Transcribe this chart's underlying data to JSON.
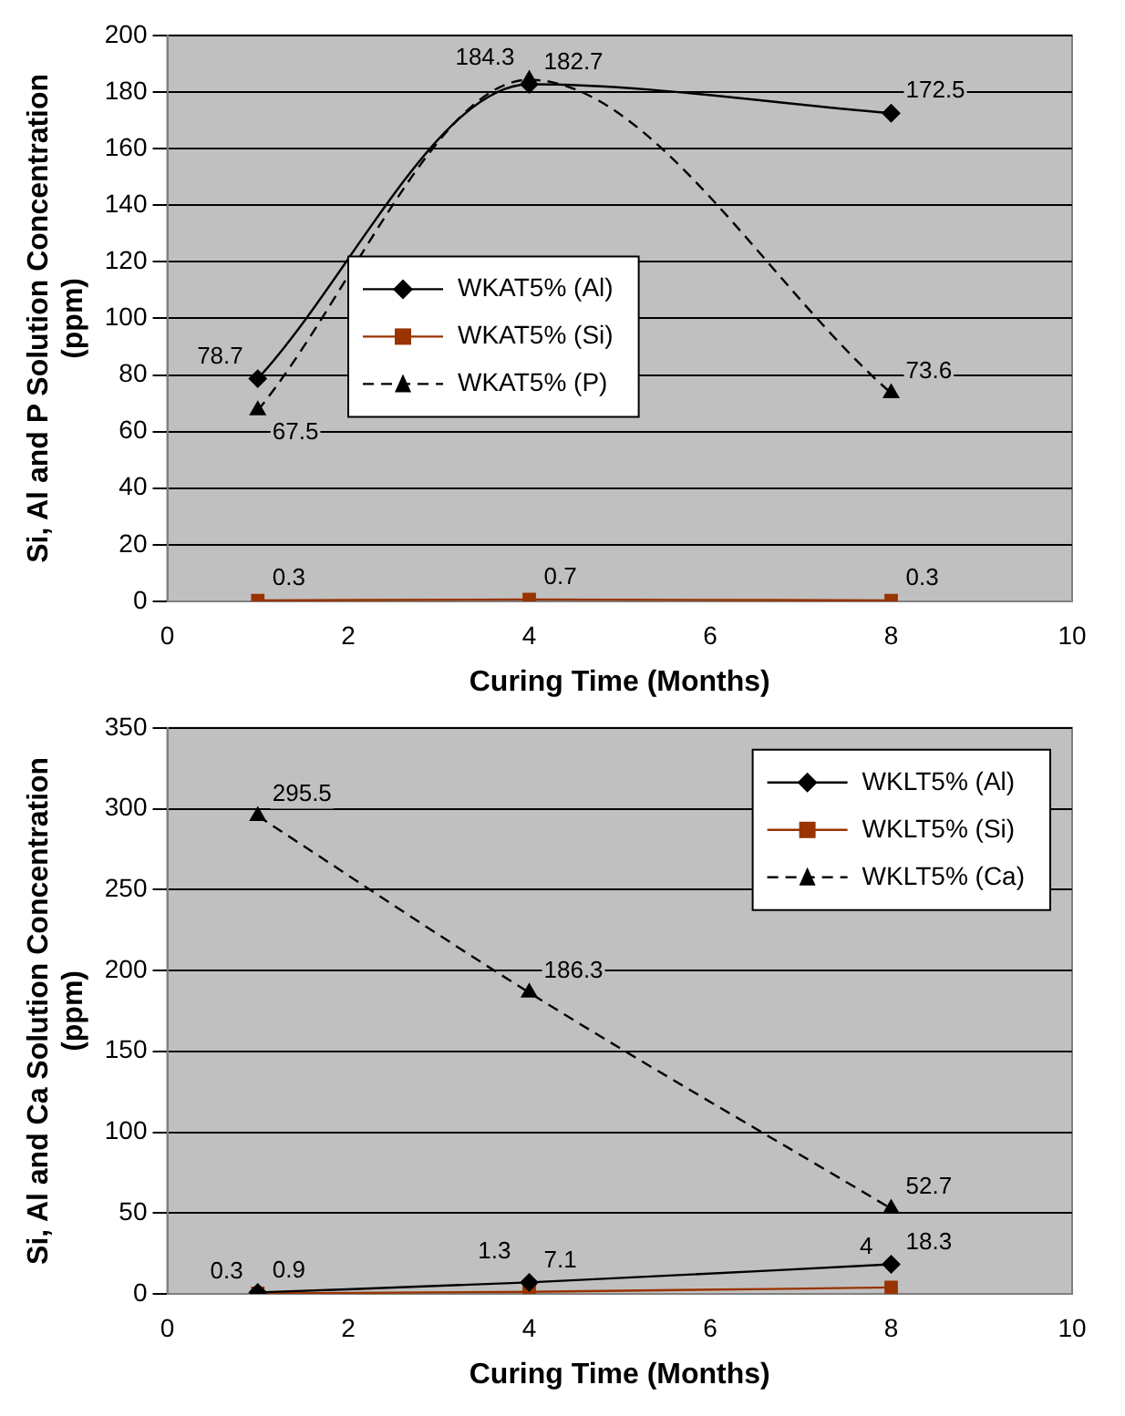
{
  "chart_data": [
    {
      "type": "line",
      "xlabel": "Curing Time (Months)",
      "ylabel": "Si, Al and P Solution Concentration (ppm)",
      "xlim": [
        0,
        10
      ],
      "xticks": [
        0,
        2,
        4,
        6,
        8,
        10
      ],
      "ylim": [
        0,
        200
      ],
      "yticks": [
        0,
        20,
        40,
        60,
        80,
        100,
        120,
        140,
        160,
        180,
        200
      ],
      "grid": "y",
      "legend": "left",
      "data_labels": true,
      "x": [
        1,
        4,
        8
      ],
      "series": [
        {
          "name": "WKAT5% (Al)",
          "color": "#000000",
          "marker": "diamond",
          "line_style": "solid",
          "values": [
            78.7,
            182.7,
            172.5
          ]
        },
        {
          "name": "WKAT5% (Si)",
          "color": "#993300",
          "marker": "square",
          "line_style": "solid",
          "values": [
            0.3,
            0.7,
            0.3
          ]
        },
        {
          "name": "WKAT5% (P)",
          "color": "#000000",
          "marker": "triangle",
          "line_style": "dashed",
          "values": [
            67.5,
            184.3,
            73.6
          ]
        }
      ]
    },
    {
      "type": "line",
      "xlabel": "Curing Time (Months)",
      "ylabel": "Si, Al and Ca Solution Concentration (ppm)",
      "xlim": [
        0,
        10
      ],
      "xticks": [
        0,
        2,
        4,
        6,
        8,
        10
      ],
      "ylim": [
        0,
        350
      ],
      "yticks": [
        0,
        50,
        100,
        150,
        200,
        250,
        300,
        350
      ],
      "grid": "y",
      "legend": "top right",
      "data_labels": true,
      "x": [
        1,
        4,
        8
      ],
      "series": [
        {
          "name": "WKLT5% (Al)",
          "color": "#000000",
          "marker": "diamond",
          "line_style": "solid",
          "values": [
            0.9,
            7.1,
            18.3
          ]
        },
        {
          "name": "WKLT5% (Si)",
          "color": "#993300",
          "marker": "square",
          "line_style": "solid",
          "values": [
            0.3,
            1.3,
            4
          ]
        },
        {
          "name": "WKLT5% (Ca)",
          "color": "#000000",
          "marker": "triangle",
          "line_style": "dashed",
          "values": [
            295.5,
            186.3,
            52.7
          ]
        }
      ]
    }
  ]
}
